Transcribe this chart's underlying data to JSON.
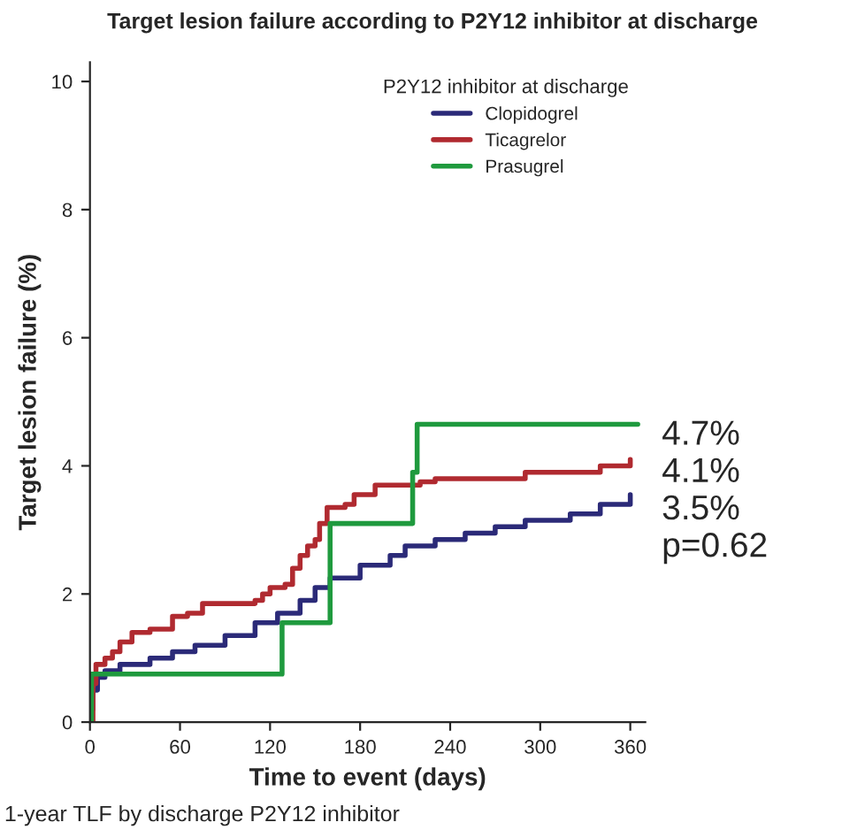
{
  "chart_data": {
    "type": "step",
    "title": "Target lesion failure according to P2Y12 inhibitor at discharge",
    "xlabel": "Time to event (days)",
    "ylabel": "Target lesion failure (%)",
    "legend_title": "P2Y12 inhibitor at discharge",
    "legend": "top right",
    "grid": false,
    "xlim": [
      0,
      370
    ],
    "xticks": [
      0,
      60,
      120,
      180,
      240,
      300,
      360
    ],
    "ylim": [
      0,
      10.3
    ],
    "yticks": [
      0,
      2,
      4,
      6,
      8,
      10
    ],
    "series": [
      {
        "name": "Clopidogrel",
        "color": "#2b2a78",
        "x": [
          0,
          2,
          5,
          10,
          20,
          40,
          55,
          70,
          90,
          110,
          125,
          140,
          150,
          160,
          180,
          200,
          210,
          230,
          250,
          270,
          290,
          320,
          340,
          360
        ],
        "values": [
          0.2,
          0.5,
          0.7,
          0.8,
          0.9,
          1.0,
          1.1,
          1.2,
          1.35,
          1.55,
          1.7,
          1.9,
          2.1,
          2.25,
          2.45,
          2.6,
          2.75,
          2.85,
          2.95,
          3.05,
          3.15,
          3.25,
          3.4,
          3.55
        ]
      },
      {
        "name": "Ticagrelor",
        "color": "#b02a30",
        "x": [
          0,
          2,
          4,
          10,
          15,
          20,
          28,
          40,
          55,
          65,
          75,
          110,
          115,
          120,
          130,
          135,
          140,
          145,
          150,
          153,
          158,
          170,
          176,
          190,
          220,
          230,
          290,
          340,
          360
        ],
        "values": [
          0,
          0.6,
          0.9,
          1.0,
          1.1,
          1.25,
          1.4,
          1.45,
          1.65,
          1.7,
          1.85,
          1.9,
          2.0,
          2.1,
          2.15,
          2.4,
          2.6,
          2.75,
          2.85,
          3.1,
          3.35,
          3.4,
          3.55,
          3.7,
          3.75,
          3.8,
          3.9,
          4.0,
          4.1
        ]
      },
      {
        "name": "Prasugrel",
        "color": "#1f9a3e",
        "x": [
          0,
          1,
          128,
          160,
          215,
          218,
          365
        ],
        "values": [
          0,
          0.75,
          1.55,
          3.1,
          3.9,
          4.65,
          4.65
        ]
      }
    ],
    "annotations": [
      "4.7%",
      "4.1%",
      "3.5%",
      "p=0.62",
      "1-year TLF by discharge P2Y12 inhibitor"
    ]
  }
}
